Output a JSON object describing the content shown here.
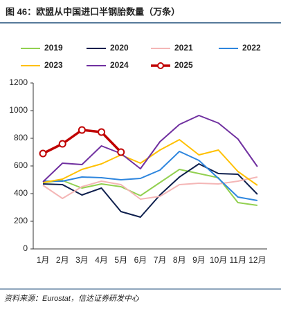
{
  "chart_data": {
    "type": "line",
    "title": "图 46：欧盟从中国进口半钢胎数量（万条）",
    "source": "资料来源：Eurostat，信达证券研发中心",
    "categories": [
      "1月",
      "2月",
      "3月",
      "4月",
      "5月",
      "6月",
      "7月",
      "8月",
      "9月",
      "10月",
      "11月",
      "12月"
    ],
    "ylim": [
      0,
      1200
    ],
    "yticks": [
      0,
      200,
      400,
      600,
      800,
      1000,
      1200
    ],
    "series": [
      {
        "name": "2019",
        "color": "#92d050",
        "values": [
          480,
          495,
          440,
          470,
          450,
          385,
          480,
          575,
          545,
          515,
          335,
          315
        ]
      },
      {
        "name": "2020",
        "color": "#0e1f4d",
        "values": [
          470,
          465,
          390,
          440,
          270,
          230,
          390,
          520,
          615,
          545,
          540,
          395
        ]
      },
      {
        "name": "2021",
        "color": "#f4b6b6",
        "values": [
          460,
          365,
          450,
          490,
          465,
          360,
          380,
          465,
          475,
          470,
          490,
          520
        ]
      },
      {
        "name": "2022",
        "color": "#2e86de",
        "values": [
          490,
          490,
          520,
          515,
          500,
          510,
          570,
          705,
          640,
          510,
          375,
          350
        ]
      },
      {
        "name": "2023",
        "color": "#ffc000",
        "values": [
          480,
          505,
          575,
          615,
          680,
          620,
          715,
          790,
          680,
          715,
          560,
          460
        ]
      },
      {
        "name": "2024",
        "color": "#7030a0",
        "values": [
          485,
          620,
          610,
          745,
          690,
          580,
          775,
          900,
          965,
          910,
          795,
          595
        ]
      },
      {
        "name": "2025",
        "color": "#c00000",
        "markers": true,
        "values": [
          690,
          760,
          860,
          845,
          700,
          null,
          null,
          null,
          null,
          null,
          null,
          null
        ]
      }
    ]
  }
}
